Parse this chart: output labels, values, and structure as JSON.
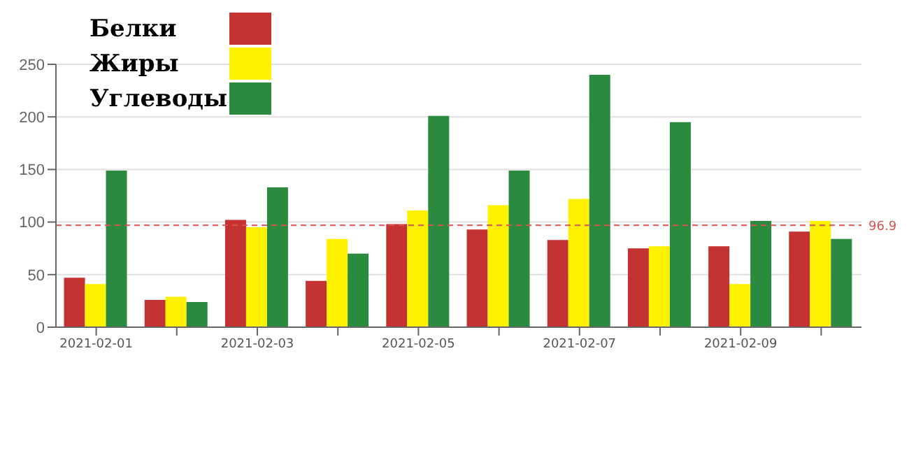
{
  "chart_data": {
    "type": "bar",
    "categories": [
      "2021-02-01",
      null,
      "2021-02-03",
      null,
      "2021-02-05",
      null,
      "2021-02-07",
      null,
      "2021-02-09",
      null
    ],
    "series": [
      {
        "name": "Белки",
        "color": "#c43331",
        "values": [
          47,
          26,
          102,
          44,
          98,
          93,
          83,
          75,
          77,
          91
        ]
      },
      {
        "name": "Жиры",
        "color": "#fff200",
        "values": [
          41,
          29,
          95,
          84,
          111,
          116,
          122,
          77,
          41,
          101
        ]
      },
      {
        "name": "Углеводы",
        "color": "#2a8a3e",
        "values": [
          149,
          24,
          133,
          70,
          201,
          149,
          240,
          195,
          101,
          84
        ]
      }
    ],
    "ylim": [
      0,
      250
    ],
    "yticks": [
      0,
      50,
      100,
      150,
      200,
      250
    ],
    "grid": "y",
    "legend": "top left",
    "ref_lines": [
      {
        "axis": "y",
        "value": 96.9,
        "label": "96.9",
        "color": "#d9534f",
        "line_style": "dashed"
      }
    ]
  }
}
